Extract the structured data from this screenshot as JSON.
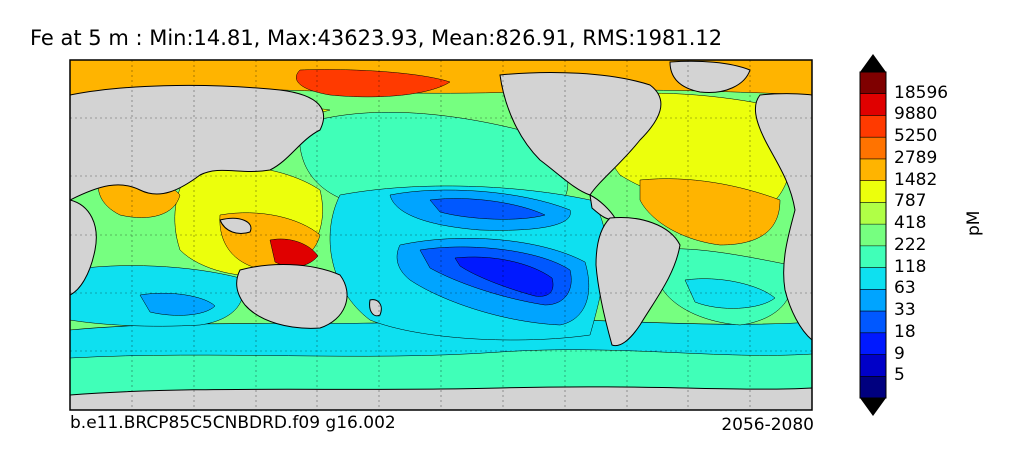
{
  "title": "Fe at 5 m : Min:14.81, Max:43623.93, Mean:826.91, RMS:1981.12",
  "case_label": "b.e11.BRCP85C5CNBDRD.f09 g16.002",
  "years_label": "2056-2080",
  "units": "pM",
  "colorbar": {
    "ticks": [
      "18596",
      "9880",
      "5250",
      "2789",
      "1482",
      "787",
      "418",
      "222",
      "118",
      "63",
      "33",
      "18",
      "9",
      "5"
    ],
    "colors": [
      "#00007f",
      "#0000c8",
      "#0019ff",
      "#0058ff",
      "#00a4ff",
      "#0ee0f0",
      "#40ffb8",
      "#76ff80",
      "#b0ff46",
      "#ecff0c",
      "#ffb400",
      "#ff7300",
      "#ff3a00",
      "#e00000",
      "#7f0000"
    ],
    "extend": "both"
  },
  "map": {
    "land_color": "#d3d3d3",
    "projection": "cylindrical",
    "center_longitude": "Pacific"
  }
}
